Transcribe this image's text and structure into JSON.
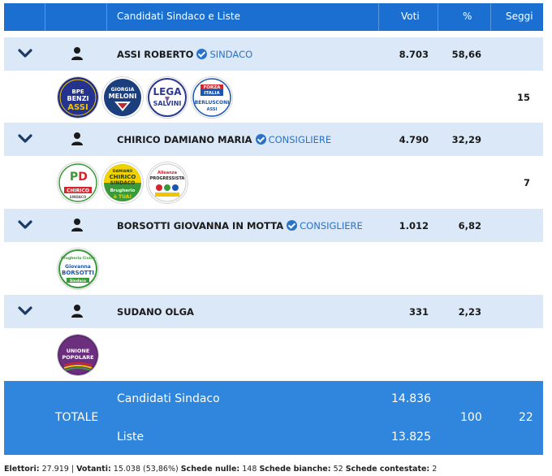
{
  "header": {
    "col_candidates": "Candidati Sindaco e Liste",
    "col_votes": "Voti",
    "col_pct": "%",
    "col_seats": "Seggi"
  },
  "candidates": [
    {
      "name": "ASSI ROBERTO",
      "role": "SINDACO",
      "votes": "8.703",
      "pct": "58,66",
      "seats": "15",
      "lists": [
        {
          "icon": "bpe-benzi-assi-logo",
          "text": "BPE BENZI ASSI"
        },
        {
          "icon": "giorgia-meloni-fratelli-d-italia-logo",
          "text": "GIORGIA MELONI"
        },
        {
          "icon": "lega-salvini-logo",
          "text": "LEGA SALVINI"
        },
        {
          "icon": "forza-italia-berlusconi-logo",
          "text": "FORZA ITALIA BERLUSCONI"
        }
      ]
    },
    {
      "name": "CHIRICO DAMIANO MARIA",
      "role": "CONSIGLIERE",
      "votes": "4.790",
      "pct": "32,29",
      "seats": "7",
      "lists": [
        {
          "icon": "pd-chirico-logo",
          "text": "PD CHIRICO"
        },
        {
          "icon": "damiano-chirico-sindaco-brugherio-e-tua-logo",
          "text": "DAMIANO CHIRICO SINDACO"
        },
        {
          "icon": "alleanza-progressista-logo",
          "text": "Alleanza PROGRESSISTA"
        }
      ]
    },
    {
      "name": "BORSOTTI GIOVANNA IN MOTTA",
      "role": "CONSIGLIERE",
      "votes": "1.012",
      "pct": "6,82",
      "seats": "",
      "lists": [
        {
          "icon": "brugherio-civica-giovanna-borsotti-logo",
          "text": "Giovanna BORSOTTI"
        }
      ]
    },
    {
      "name": "SUDANO OLGA",
      "role": "",
      "votes": "331",
      "pct": "2,23",
      "seats": "",
      "lists": [
        {
          "icon": "unione-popolare-logo",
          "text": "UNIONE POPOLARE"
        }
      ]
    }
  ],
  "totals": {
    "label": "TOTALE",
    "candidates_label": "Candidati Sindaco",
    "candidates_votes": "14.836",
    "lists_label": "Liste",
    "lists_votes": "13.825",
    "pct": "100",
    "seats": "22"
  },
  "footer": {
    "electors_label": "Elettori:",
    "electors": "27.919",
    "voters_label": "Votanti:",
    "voters": "15.038 (53,86%)",
    "null_label": "Schede nulle:",
    "null": "148",
    "blank_label": "Schede bianche:",
    "blank": "52",
    "contested_label": "Schede contestate:",
    "contested": "2"
  },
  "colors": {
    "header_blue": "#1a6fd1",
    "candidate_row_bg": "#dbe8f8",
    "total_blue": "#2f86dc",
    "role_blue": "#2a72c8"
  }
}
